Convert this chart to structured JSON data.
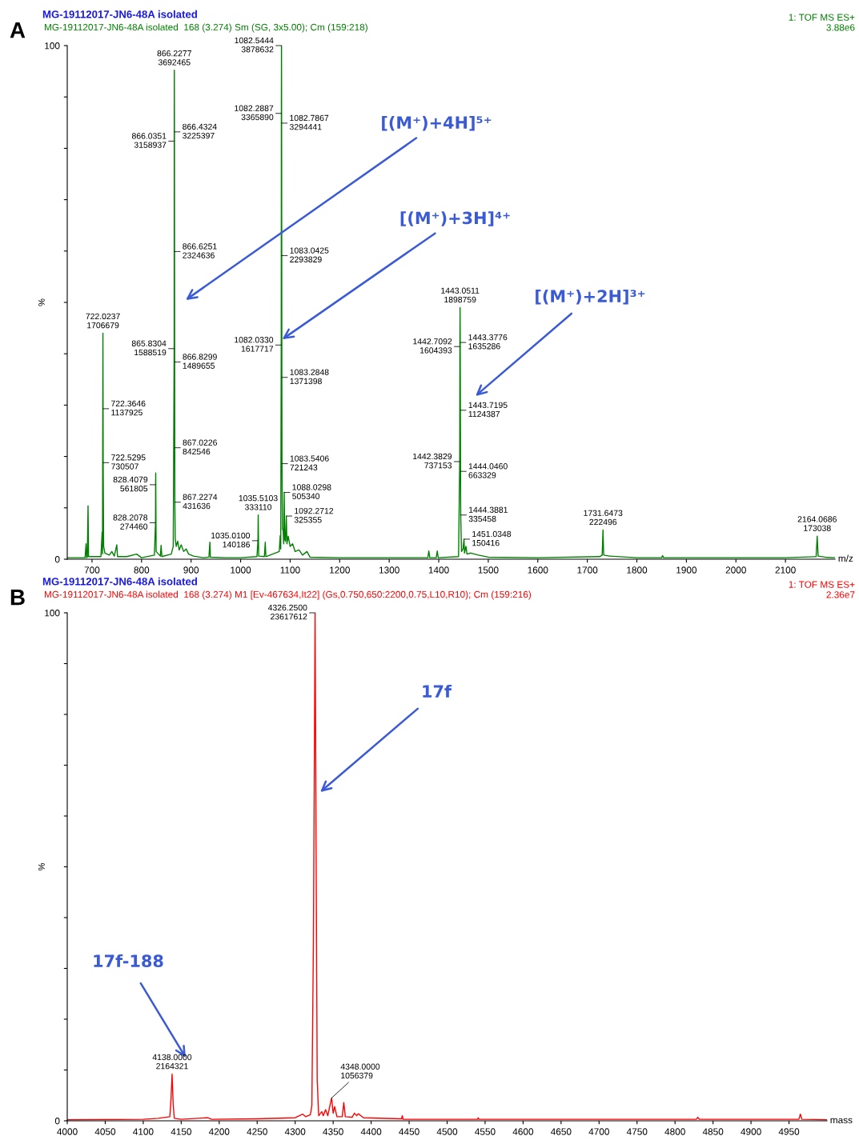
{
  "chart_data": [
    {
      "type": "line",
      "title": "MG-19112017-JN6-48A isolated",
      "subtitle": "MG-19112017-JN6-48A isolated  168 (3.274) Sm (SG, 3x5.00); Cm (159:218)",
      "xlabel": "m/z",
      "ylabel": "%",
      "series": [
        {
          "color": "#008000",
          "x": [
            650,
            686,
            688,
            689,
            690.5,
            692,
            693,
            718,
            720.4,
            721.2,
            722.0237,
            722.3646,
            722.5295,
            723.5,
            726,
            735,
            740,
            745,
            750,
            751.5,
            770,
            790,
            800,
            826,
            828.2078,
            828.4079,
            828.6,
            829.5,
            838,
            839.5,
            841,
            860,
            864,
            865.8304,
            866.0351,
            866.2277,
            866.4324,
            866.6251,
            866.8299,
            867.0226,
            867.2274,
            868,
            870,
            873,
            876,
            880,
            885,
            890,
            895,
            905,
            925,
            936,
            938,
            939,
            970,
            1000,
            1033,
            1035.01,
            1035.5103,
            1036.5,
            1048,
            1049.8,
            1051,
            1078,
            1080,
            1081,
            1082.033,
            1082.2887,
            1082.5444,
            1082.7867,
            1083.0425,
            1083.2848,
            1083.5406,
            1084.5,
            1086,
            1087,
            1088.0298,
            1089,
            1090.5,
            1092.2712,
            1093.5,
            1096,
            1100,
            1105,
            1110,
            1118,
            1125,
            1134,
            1140,
            1200,
            1300,
            1378,
            1380,
            1382,
            1395,
            1397,
            1399,
            1440,
            1442.3829,
            1442.7092,
            1443.0511,
            1443.3776,
            1443.7195,
            1444.046,
            1444.3881,
            1446,
            1449,
            1451.0348,
            1452,
            1455,
            1457,
            1465,
            1480,
            1500,
            1600,
            1725,
            1730,
            1731.6473,
            1733,
            1745,
            1800,
            1850,
            1852,
            1854,
            2100,
            2162,
            2164.0686,
            2166,
            2180,
            2200
          ],
          "values": [
            0.3,
            0.3,
            3.0,
            0.3,
            0.4,
            10.4,
            0.5,
            0.5,
            5.3,
            1.0,
            44.0,
            29.3,
            18.8,
            2.5,
            1.2,
            0.8,
            1.5,
            0.6,
            2.8,
            0.5,
            0.5,
            1.0,
            0.3,
            0.8,
            7.1,
            14.5,
            16.8,
            1.5,
            0.6,
            2.7,
            0.5,
            1.0,
            2.5,
            41.0,
            81.4,
            95.2,
            83.2,
            59.9,
            38.4,
            21.7,
            11.1,
            4.0,
            2.5,
            3.5,
            1.8,
            2.8,
            1.5,
            2.0,
            1.0,
            0.6,
            0.3,
            0.4,
            3.3,
            0.4,
            0.3,
            0.3,
            0.5,
            3.6,
            8.6,
            0.6,
            0.5,
            3.3,
            0.5,
            1.5,
            4.6,
            2.0,
            41.7,
            86.8,
            100,
            84.9,
            59.1,
            35.4,
            18.6,
            6.0,
            5.5,
            3.0,
            13.0,
            4.0,
            3.5,
            8.4,
            3.0,
            4.5,
            2.5,
            3.0,
            1.5,
            1.8,
            0.8,
            1.5,
            0.4,
            0.3,
            0.3,
            0.3,
            1.6,
            0.3,
            0.3,
            1.6,
            0.3,
            0.5,
            19.0,
            41.4,
            49.0,
            42.2,
            29.0,
            17.1,
            8.6,
            1.5,
            2.0,
            3.9,
            1.2,
            2.5,
            1.0,
            1.2,
            0.8,
            0.4,
            0.3,
            0.5,
            0.8,
            5.7,
            0.8,
            0.6,
            0.3,
            0.3,
            0.7,
            0.3,
            0.3,
            0.5,
            4.5,
            0.6,
            0.4,
            0.3
          ]
        }
      ],
      "xlim": [
        650,
        2200
      ],
      "xticks": [
        700,
        800,
        900,
        1000,
        1100,
        1200,
        1300,
        1400,
        1500,
        1600,
        1700,
        1800,
        1900,
        2000,
        2100
      ],
      "ylim": [
        0,
        100
      ],
      "yticks": [
        0,
        {
          "value": 10,
          "label": null
        },
        {
          "value": 20,
          "label": null
        },
        {
          "value": 30,
          "label": null
        },
        {
          "value": 40,
          "label": null
        },
        {
          "value": 50,
          "label": null
        },
        {
          "value": 60,
          "label": null
        },
        {
          "value": 70,
          "label": null
        },
        {
          "value": 80,
          "label": null
        },
        {
          "value": 90,
          "label": null
        },
        100
      ],
      "annotations": [
        "A",
        "1: TOF MS ES+\n3.88e6",
        {
          "text": "722.0237\n1706679",
          "x": 722.0237,
          "y": 44.0
        },
        {
          "text": "722.3646\n1137925",
          "x": 722.3646,
          "y": 29.3
        },
        {
          "text": "722.5295\n730507",
          "x": 722.5295,
          "y": 18.8
        },
        {
          "text": "828.4079\n561805",
          "x": 828.4079,
          "y": 14.5
        },
        {
          "text": "828.2078\n274460",
          "x": 828.2078,
          "y": 7.1
        },
        {
          "text": "865.8304\n1588519",
          "x": 865.8304,
          "y": 41.0
        },
        {
          "text": "866.0351\n3158937",
          "x": 866.0351,
          "y": 81.4
        },
        {
          "text": "866.2277\n3692465",
          "x": 866.2277,
          "y": 95.2
        },
        {
          "text": "866.4324\n3225397",
          "x": 866.4324,
          "y": 83.2
        },
        {
          "text": "866.6251\n2324636",
          "x": 866.6251,
          "y": 59.9
        },
        {
          "text": "866.8299\n1489655",
          "x": 866.8299,
          "y": 38.4
        },
        {
          "text": "867.0226\n842546",
          "x": 867.0226,
          "y": 21.7
        },
        {
          "text": "867.2274\n431636",
          "x": 867.2274,
          "y": 11.1
        },
        {
          "text": "1035.0100\n140186",
          "x": 1035.01,
          "y": 3.6
        },
        {
          "text": "1035.5103\n333110",
          "x": 1035.5103,
          "y": 8.6
        },
        {
          "text": "1082.0330\n1617717",
          "x": 1082.033,
          "y": 41.7
        },
        {
          "text": "1082.2887\n3365890",
          "x": 1082.2887,
          "y": 86.8
        },
        {
          "text": "1082.5444\n3878632",
          "x": 1082.5444,
          "y": 100
        },
        {
          "text": "1082.7867\n3294441",
          "x": 1082.7867,
          "y": 84.9
        },
        {
          "text": "1083.0425\n2293829",
          "x": 1083.0425,
          "y": 59.1
        },
        {
          "text": "1083.2848\n1371398",
          "x": 1083.2848,
          "y": 35.4
        },
        {
          "text": "1083.5406\n721243",
          "x": 1083.5406,
          "y": 18.6
        },
        {
          "text": "1088.0298\n505340",
          "x": 1088.0298,
          "y": 13.0
        },
        {
          "text": "1092.2712\n325355",
          "x": 1092.2712,
          "y": 8.4
        },
        {
          "text": "1442.3829\n737153",
          "x": 1442.3829,
          "y": 19.0
        },
        {
          "text": "1442.7092\n1604393",
          "x": 1442.7092,
          "y": 41.4
        },
        {
          "text": "1443.0511\n1898759",
          "x": 1443.0511,
          "y": 49.0
        },
        {
          "text": "1443.3776\n1635286",
          "x": 1443.3776,
          "y": 42.2
        },
        {
          "text": "1443.7195\n1124387",
          "x": 1443.7195,
          "y": 29.0
        },
        {
          "text": "1444.0460\n663329",
          "x": 1444.046,
          "y": 17.1
        },
        {
          "text": "1444.3881\n335458",
          "x": 1444.3881,
          "y": 8.6
        },
        {
          "text": "1451.0348\n150416",
          "x": 1451.0348,
          "y": 3.9
        },
        {
          "text": "1731.6473\n222496",
          "x": 1731.6473,
          "y": 5.7
        },
        {
          "text": "2164.0686\n173038",
          "x": 2164.0686,
          "y": 4.5
        },
        "[(M⁺)+4H]⁵⁺",
        "[(M⁺)+2H]³⁺",
        {
          "text": "[(M⁺)+3H]⁴⁺",
          "x": 1084,
          "y": 42.8
        }
      ]
    },
    {
      "type": "line",
      "title": "MG-19112017-JN6-48A isolated",
      "subtitle": "MG-19112017-JN6-48A isolated  168 (3.274) M1 [Ev-467634,It22] (Gs,0.750,650:2200,0.75,L10,R10); Cm (159:216)",
      "xlabel": "mass",
      "ylabel": "%",
      "series": [
        {
          "color": "#ff0000",
          "x": [
            4000,
            4100,
            4120,
            4135,
            4136.5,
            4138,
            4139.5,
            4141,
            4150,
            4185,
            4190,
            4250,
            4300,
            4310,
            4314,
            4320,
            4322,
            4324,
            4326.25,
            4327.5,
            4329,
            4331,
            4335,
            4337,
            4340,
            4343,
            4345,
            4348,
            4350,
            4352,
            4355,
            4362,
            4364,
            4366,
            4375,
            4378,
            4381,
            4383,
            4390,
            4440,
            4441,
            4442,
            4540,
            4541,
            4542,
            4828,
            4830,
            4832,
            4963,
            4965,
            4967,
            5000
          ],
          "values": [
            0.2,
            0.3,
            0.5,
            0.8,
            4,
            9.2,
            3,
            0.5,
            0.3,
            0.6,
            0.3,
            0.4,
            0.6,
            1.3,
            0.8,
            1.2,
            3.0,
            35,
            100,
            55,
            8,
            1.0,
            1.8,
            1.0,
            2.2,
            1.0,
            2.5,
            4.5,
            1.5,
            2.8,
            0.8,
            0.8,
            3.6,
            0.8,
            0.7,
            1.5,
            1.0,
            1.4,
            0.6,
            0.4,
            1.0,
            0.3,
            0.3,
            0.6,
            0.3,
            0.3,
            0.7,
            0.3,
            0.3,
            1.3,
            0.3,
            0.2
          ]
        }
      ],
      "xlim": [
        4000,
        5000
      ],
      "xticks": [
        4000,
        4050,
        4100,
        4150,
        4200,
        4250,
        4300,
        4350,
        4400,
        4450,
        4500,
        4550,
        4600,
        4650,
        4700,
        4750,
        4800,
        4850,
        4900,
        4950
      ],
      "ylim": [
        0,
        100
      ],
      "yticks": [
        0,
        {
          "value": 10,
          "label": null
        },
        {
          "value": 20,
          "label": null
        },
        {
          "value": 30,
          "label": null
        },
        {
          "value": 40,
          "label": null
        },
        {
          "value": 50,
          "label": null
        },
        {
          "value": 60,
          "label": null
        },
        {
          "value": 70,
          "label": null
        },
        {
          "value": 80,
          "label": null
        },
        {
          "value": 90,
          "label": null
        },
        100
      ],
      "annotations": [
        "B",
        "1: TOF MS ES+\n2.36e7",
        {
          "text": "4326.2500\n23617612",
          "x": 4326.25,
          "y": 100
        },
        {
          "text": "4138.0000\n2164321",
          "x": 4138,
          "y": 9.2
        },
        {
          "text": "4348.0000\n1056379",
          "x": 4348,
          "y": 4.5
        },
        "17f",
        "17f-188"
      ]
    }
  ]
}
